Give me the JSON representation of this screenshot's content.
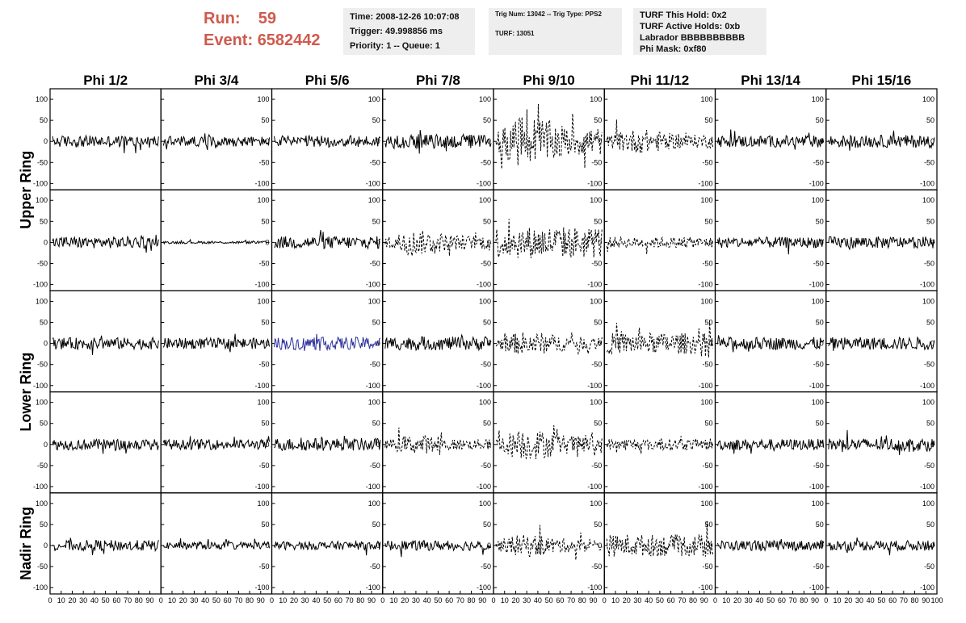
{
  "header": {
    "run_label": "Run:",
    "run_value": "59",
    "event_label": "Event:",
    "event_value": "6582442",
    "time": "Time: 2008-12-26 10:07:08",
    "trigger": "Trigger: 49.998856 ms",
    "priority": "Priority: 1 -- Queue: 1",
    "trig_num": "Trig Num: 13042 -- Trig Type: PPS2",
    "turf": "TURF: 13051",
    "turf_this_hold": "TURF This Hold: 0x2",
    "turf_active_holds": "TURF Active Holds: 0xb",
    "labrador": "Labrador BBBBBBBBBB",
    "phi_mask": "Phi Mask: 0xf80"
  },
  "colors": {
    "run_text": "#cf5a4e",
    "trace_normal": "#000000",
    "trace_highlight": "#2a2f9a"
  },
  "chart_data": {
    "type": "line",
    "columns": [
      "Phi 1/2",
      "Phi 3/4",
      "Phi 5/6",
      "Phi 7/8",
      "Phi 9/10",
      "Phi 11/12",
      "Phi 13/14",
      "Phi 15/16"
    ],
    "rows": [
      "Upper Ring",
      "Lower Ring",
      "Nadir Ring"
    ],
    "x_ticks": [
      "0",
      "10",
      "20",
      "30",
      "40",
      "50",
      "60",
      "70",
      "80",
      "90",
      "100"
    ],
    "y_ticks": [
      "100",
      "50",
      "0",
      "-50",
      "-100"
    ],
    "xlim": [
      0,
      100
    ],
    "ylim": [
      -115,
      125
    ],
    "panels_per_column": 5,
    "panels": [
      [
        {
          "style": "solid",
          "amp": 14,
          "env": "flat"
        },
        {
          "style": "solid",
          "amp": 12,
          "env": "flat"
        },
        {
          "style": "solid",
          "amp": 14,
          "env": "flat"
        },
        {
          "style": "solid",
          "amp": 17,
          "env": "flat"
        },
        {
          "style": "dashed",
          "amp": 55,
          "env": "mid"
        },
        {
          "style": "dashed",
          "amp": 26,
          "env": "mid"
        },
        {
          "style": "solid",
          "amp": 14,
          "env": "flat"
        },
        {
          "style": "solid",
          "amp": 15,
          "env": "flat"
        }
      ],
      [
        {
          "style": "solid",
          "amp": 14,
          "env": "flat"
        },
        {
          "style": "solid",
          "amp": 3,
          "env": "flat"
        },
        {
          "style": "solid",
          "amp": 15,
          "env": "flat"
        },
        {
          "style": "dashed",
          "amp": 26,
          "env": "mid"
        },
        {
          "style": "dashed",
          "amp": 38,
          "env": "flat"
        },
        {
          "style": "dashed",
          "amp": 13,
          "env": "flat"
        },
        {
          "style": "solid",
          "amp": 13,
          "env": "flat"
        },
        {
          "style": "solid",
          "amp": 14,
          "env": "flat"
        }
      ],
      [
        {
          "style": "solid",
          "amp": 14,
          "env": "flat"
        },
        {
          "style": "solid",
          "amp": 13,
          "env": "flat"
        },
        {
          "style": "highlight",
          "amp": 15,
          "env": "flat"
        },
        {
          "style": "solid",
          "amp": 16,
          "env": "flat"
        },
        {
          "style": "dashed",
          "amp": 25,
          "env": "mid"
        },
        {
          "style": "dashed",
          "amp": 25,
          "env": "flat"
        },
        {
          "style": "solid",
          "amp": 15,
          "env": "flat"
        },
        {
          "style": "solid",
          "amp": 15,
          "env": "flat"
        }
      ],
      [
        {
          "style": "solid",
          "amp": 13,
          "env": "flat"
        },
        {
          "style": "solid",
          "amp": 12,
          "env": "flat"
        },
        {
          "style": "solid",
          "amp": 15,
          "env": "flat"
        },
        {
          "style": "dashed",
          "amp": 20,
          "env": "mid"
        },
        {
          "style": "dashed",
          "amp": 33,
          "env": "mid"
        },
        {
          "style": "dashed",
          "amp": 14,
          "env": "flat"
        },
        {
          "style": "solid",
          "amp": 13,
          "env": "flat"
        },
        {
          "style": "solid",
          "amp": 15,
          "env": "flat"
        }
      ],
      [
        {
          "style": "solid",
          "amp": 13,
          "env": "flat"
        },
        {
          "style": "solid",
          "amp": 9,
          "env": "flat"
        },
        {
          "style": "solid",
          "amp": 10,
          "env": "flat"
        },
        {
          "style": "solid",
          "amp": 12,
          "env": "flat"
        },
        {
          "style": "dashed",
          "amp": 24,
          "env": "mid"
        },
        {
          "style": "dashed",
          "amp": 26,
          "env": "flat"
        },
        {
          "style": "solid",
          "amp": 12,
          "env": "flat"
        },
        {
          "style": "solid",
          "amp": 12,
          "env": "flat"
        }
      ]
    ]
  }
}
